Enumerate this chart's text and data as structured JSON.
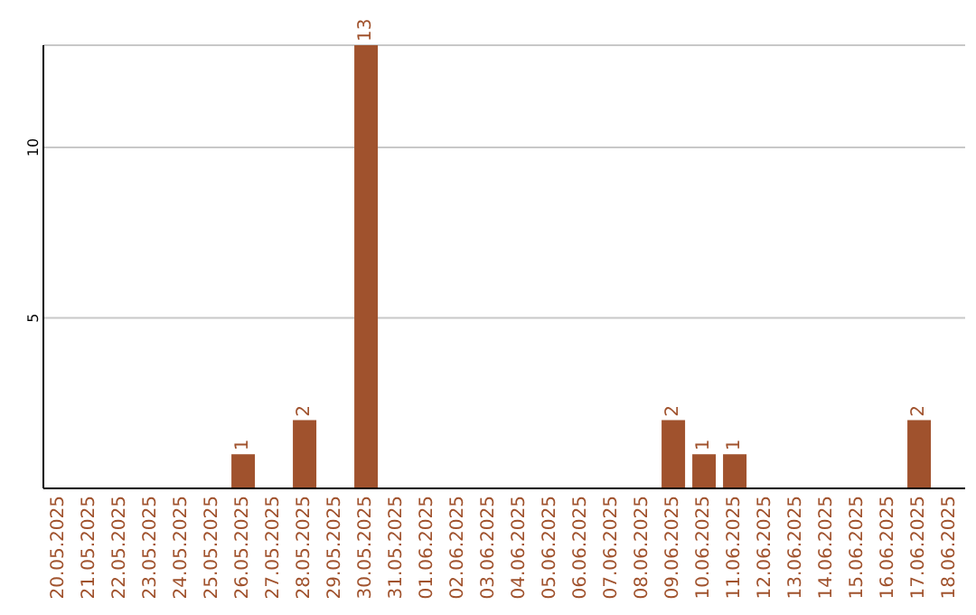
{
  "chart_data": {
    "type": "bar",
    "categories": [
      "20.05.2025",
      "21.05.2025",
      "22.05.2025",
      "23.05.2025",
      "24.05.2025",
      "25.05.2025",
      "26.05.2025",
      "27.05.2025",
      "28.05.2025",
      "29.05.2025",
      "30.05.2025",
      "31.05.2025",
      "01.06.2025",
      "02.06.2025",
      "03.06.2025",
      "04.06.2025",
      "05.06.2025",
      "06.06.2025",
      "07.06.2025",
      "08.06.2025",
      "09.06.2025",
      "10.06.2025",
      "11.06.2025",
      "12.06.2025",
      "13.06.2025",
      "14.06.2025",
      "15.06.2025",
      "16.06.2025",
      "17.06.2025",
      "18.06.2025"
    ],
    "values": [
      0,
      0,
      0,
      0,
      0,
      0,
      1,
      0,
      2,
      0,
      13,
      0,
      0,
      0,
      0,
      0,
      0,
      0,
      0,
      0,
      2,
      1,
      1,
      0,
      0,
      0,
      0,
      0,
      2,
      0
    ],
    "value_labels": [
      null,
      null,
      null,
      null,
      null,
      null,
      "1",
      null,
      "2",
      null,
      "13",
      null,
      null,
      null,
      null,
      null,
      null,
      null,
      null,
      null,
      "2",
      "1",
      "1",
      null,
      null,
      null,
      null,
      null,
      "2",
      null
    ],
    "color": "#a0522d",
    "ylim": [
      0,
      13
    ],
    "yticks": [
      5,
      10
    ],
    "grid": "y"
  }
}
